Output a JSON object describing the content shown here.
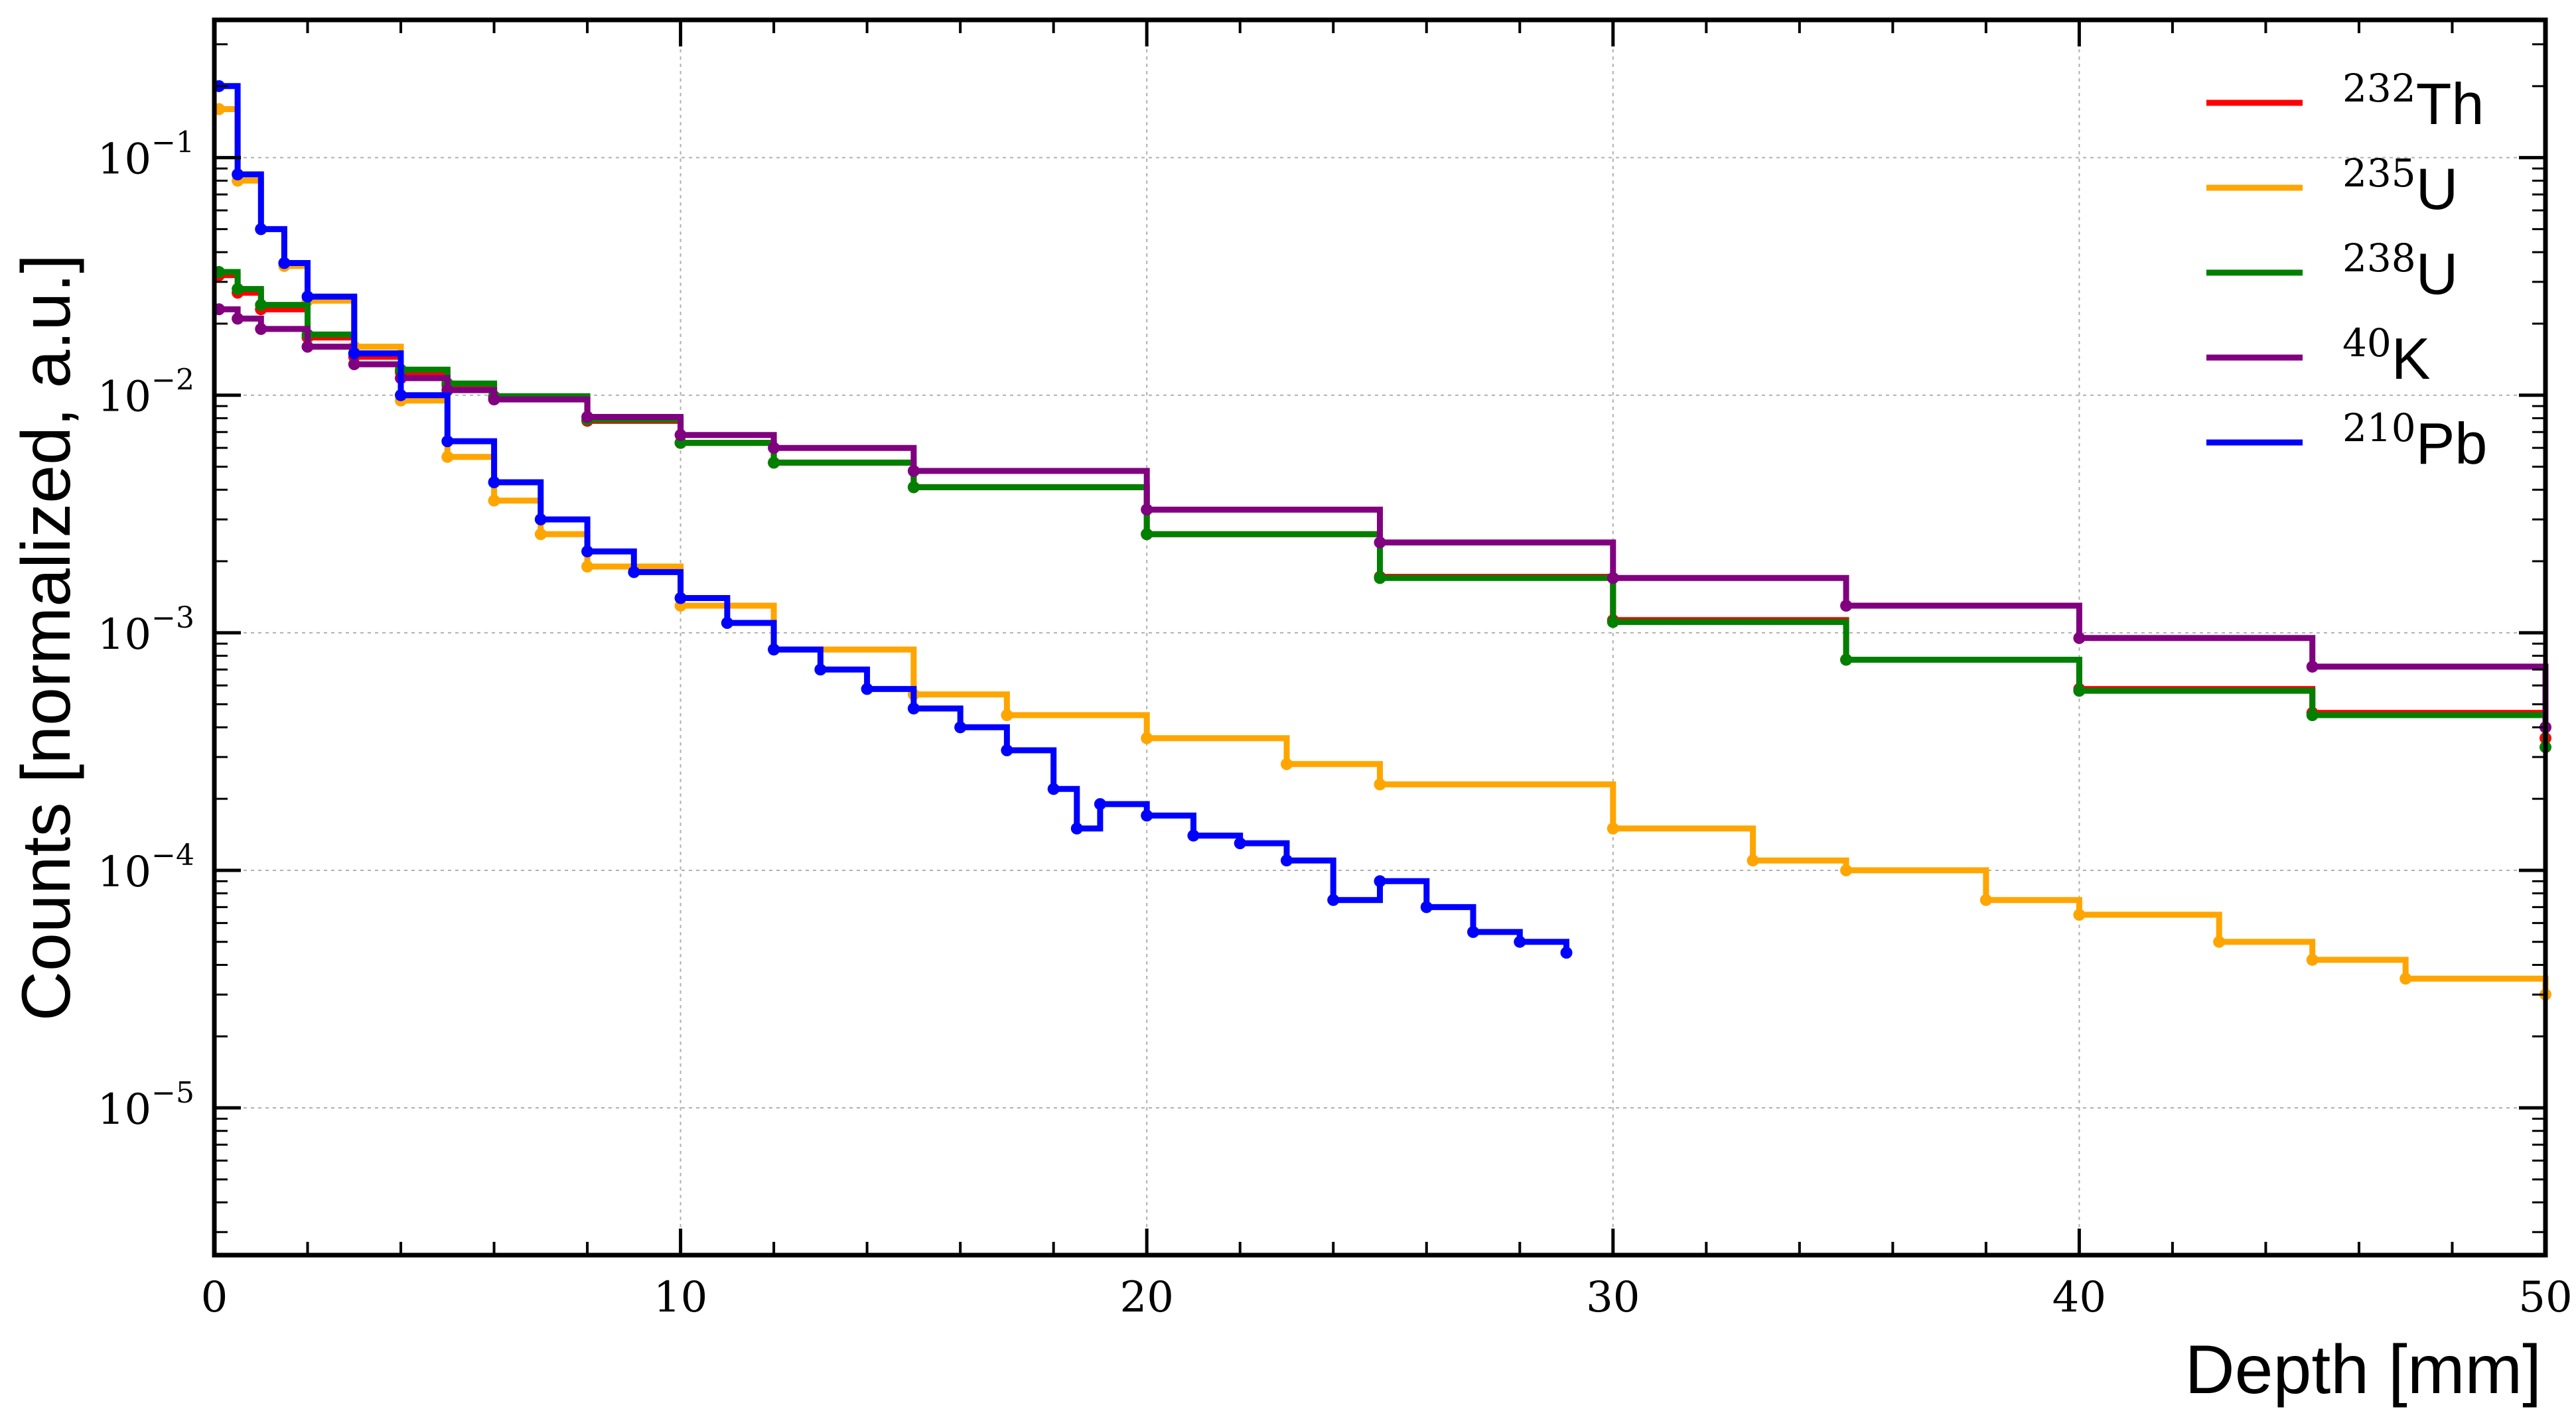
{
  "chart_data": {
    "type": "line",
    "title": "",
    "xlabel": "Depth [mm]",
    "ylabel": "Counts [normalized, a.u.]",
    "xlim": [
      0,
      50
    ],
    "ylim": [
      2.4e-06,
      0.38
    ],
    "yscale": "log",
    "grid": true,
    "legend_position": "top-right",
    "x_ticks": [
      0,
      10,
      20,
      30,
      40,
      50
    ],
    "x_tick_labels": [
      "0",
      "10",
      "20",
      "30",
      "40",
      "50"
    ],
    "y_ticks": [
      1e-05,
      0.0001,
      0.001,
      0.01,
      0.1
    ],
    "y_tick_base": "10",
    "y_tick_exponents": [
      "−5",
      "−4",
      "−3",
      "−2",
      "−1"
    ],
    "series": [
      {
        "name": "Th",
        "mass": "232",
        "color": "#ff0000",
        "x": [
          0.1,
          0.5,
          1,
          2,
          3,
          4,
          5,
          6,
          8,
          10,
          12,
          15,
          20,
          25,
          30,
          35,
          40,
          45,
          50
        ],
        "y": [
          0.032,
          0.027,
          0.023,
          0.0175,
          0.0145,
          0.0125,
          0.011,
          0.0098,
          0.0078,
          0.0063,
          0.0052,
          0.0041,
          0.0026,
          0.00172,
          0.00113,
          0.00077,
          0.00058,
          0.00046,
          0.00036
        ]
      },
      {
        "name": "U",
        "mass": "235",
        "color": "#ffa500",
        "x": [
          0.1,
          0.5,
          1,
          1.5,
          2,
          3,
          4,
          5,
          6,
          7,
          8,
          10,
          12,
          15,
          17,
          20,
          23,
          25,
          30,
          33,
          35,
          38,
          40,
          43,
          45,
          47,
          50
        ],
        "y": [
          0.16,
          0.08,
          0.05,
          0.035,
          0.025,
          0.016,
          0.0095,
          0.0055,
          0.0036,
          0.0026,
          0.0019,
          0.0013,
          0.00085,
          0.00055,
          0.00045,
          0.00036,
          0.00028,
          0.00023,
          0.00015,
          0.00011,
          0.0001,
          7.5e-05,
          6.5e-05,
          5e-05,
          4.2e-05,
          3.5e-05,
          3e-05
        ]
      },
      {
        "name": "U",
        "mass": "238",
        "color": "#008000",
        "x": [
          0.1,
          0.5,
          1,
          2,
          3,
          4,
          5,
          6,
          8,
          10,
          12,
          15,
          20,
          25,
          30,
          35,
          40,
          45,
          50
        ],
        "y": [
          0.033,
          0.028,
          0.024,
          0.018,
          0.015,
          0.0128,
          0.0112,
          0.0099,
          0.0079,
          0.0063,
          0.0052,
          0.0041,
          0.0026,
          0.0017,
          0.00111,
          0.00077,
          0.00057,
          0.00045,
          0.00033
        ]
      },
      {
        "name": "K",
        "mass": "40",
        "color": "#800080",
        "x": [
          0.1,
          0.5,
          1,
          2,
          3,
          4,
          5,
          6,
          8,
          10,
          12,
          15,
          20,
          25,
          30,
          35,
          40,
          45,
          50
        ],
        "y": [
          0.023,
          0.021,
          0.019,
          0.016,
          0.0135,
          0.0118,
          0.0105,
          0.0096,
          0.0081,
          0.0068,
          0.006,
          0.0048,
          0.0033,
          0.0024,
          0.0017,
          0.0013,
          0.00095,
          0.00072,
          0.0004
        ]
      },
      {
        "name": "Pb",
        "mass": "210",
        "color": "#0000ff",
        "x": [
          0.1,
          0.5,
          1,
          1.5,
          2,
          3,
          4,
          5,
          6,
          7,
          8,
          9,
          10,
          11,
          12,
          13,
          14,
          15,
          16,
          17,
          18,
          18.5,
          19,
          20,
          21,
          22,
          23,
          24,
          25,
          26,
          27,
          28,
          29
        ],
        "y": [
          0.2,
          0.085,
          0.05,
          0.036,
          0.026,
          0.015,
          0.01,
          0.0064,
          0.0043,
          0.003,
          0.0022,
          0.0018,
          0.0014,
          0.0011,
          0.00085,
          0.0007,
          0.00058,
          0.00048,
          0.0004,
          0.00032,
          0.00022,
          0.00015,
          0.00019,
          0.00017,
          0.00014,
          0.00013,
          0.00011,
          7.5e-05,
          9e-05,
          7e-05,
          5.5e-05,
          5e-05,
          4.5e-05
        ]
      }
    ]
  }
}
